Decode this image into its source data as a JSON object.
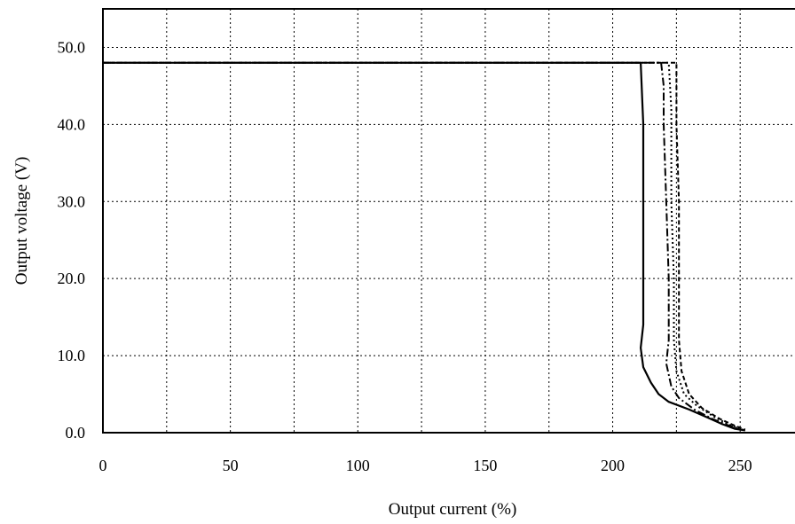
{
  "chart_data": {
    "type": "line",
    "title": "",
    "xlabel": "Output current (%)",
    "ylabel": "Output voltage (V)",
    "xlim": [
      0,
      275
    ],
    "ylim": [
      0,
      55
    ],
    "x_ticks": [
      0,
      50,
      100,
      150,
      200,
      250
    ],
    "x_tick_labels": [
      "0",
      "50",
      "100",
      "150",
      "200",
      "250"
    ],
    "x_grid": [
      25,
      50,
      75,
      100,
      125,
      150,
      175,
      200,
      225,
      250
    ],
    "y_ticks": [
      0,
      10,
      20,
      30,
      40,
      50
    ],
    "y_tick_labels": [
      "0.0",
      "10.0",
      "20.0",
      "30.0",
      "40.0",
      "50.0"
    ],
    "y_grid": [
      10,
      20,
      30,
      40,
      50
    ],
    "grid": true,
    "legend": "none",
    "series": [
      {
        "line_style": "solid",
        "color": "#000000",
        "points": [
          [
            0,
            48.0
          ],
          [
            211,
            48.0
          ],
          [
            212,
            40.0
          ],
          [
            212,
            30.0
          ],
          [
            212,
            20.0
          ],
          [
            212,
            14.0
          ],
          [
            211,
            11.0
          ],
          [
            212,
            8.5
          ],
          [
            215,
            6.5
          ],
          [
            218,
            5.0
          ],
          [
            222,
            4.0
          ],
          [
            230,
            3.0
          ],
          [
            237,
            2.0
          ],
          [
            243,
            1.1
          ],
          [
            248,
            0.5
          ],
          [
            252,
            0.3
          ]
        ]
      },
      {
        "line_style": "dash-dot",
        "color": "#000000",
        "points": [
          [
            0,
            48.0
          ],
          [
            219,
            48.0
          ],
          [
            220,
            45.0
          ],
          [
            220,
            40.0
          ],
          [
            221,
            30.0
          ],
          [
            222,
            20.0
          ],
          [
            222,
            12.0
          ],
          [
            221,
            9.0
          ],
          [
            223,
            6.0
          ],
          [
            226,
            4.5
          ],
          [
            232,
            3.0
          ],
          [
            239,
            1.8
          ],
          [
            245,
            1.0
          ],
          [
            250,
            0.5
          ]
        ]
      },
      {
        "line_style": "dotted",
        "color": "#000000",
        "points": [
          [
            0,
            48.0
          ],
          [
            222,
            48.0
          ],
          [
            223,
            42.0
          ],
          [
            223,
            30.0
          ],
          [
            224,
            20.0
          ],
          [
            224,
            12.0
          ],
          [
            225,
            8.0
          ],
          [
            228,
            5.0
          ],
          [
            233,
            3.5
          ],
          [
            240,
            2.0
          ],
          [
            246,
            1.0
          ],
          [
            251,
            0.4
          ]
        ]
      },
      {
        "line_style": "dashed",
        "color": "#000000",
        "points": [
          [
            0,
            48.0
          ],
          [
            225,
            48.0
          ],
          [
            225,
            40.0
          ],
          [
            226,
            30.0
          ],
          [
            226,
            20.0
          ],
          [
            226,
            12.0
          ],
          [
            227,
            8.0
          ],
          [
            230,
            5.0
          ],
          [
            235,
            3.2
          ],
          [
            242,
            1.8
          ],
          [
            248,
            0.9
          ],
          [
            252,
            0.4
          ]
        ]
      }
    ]
  }
}
